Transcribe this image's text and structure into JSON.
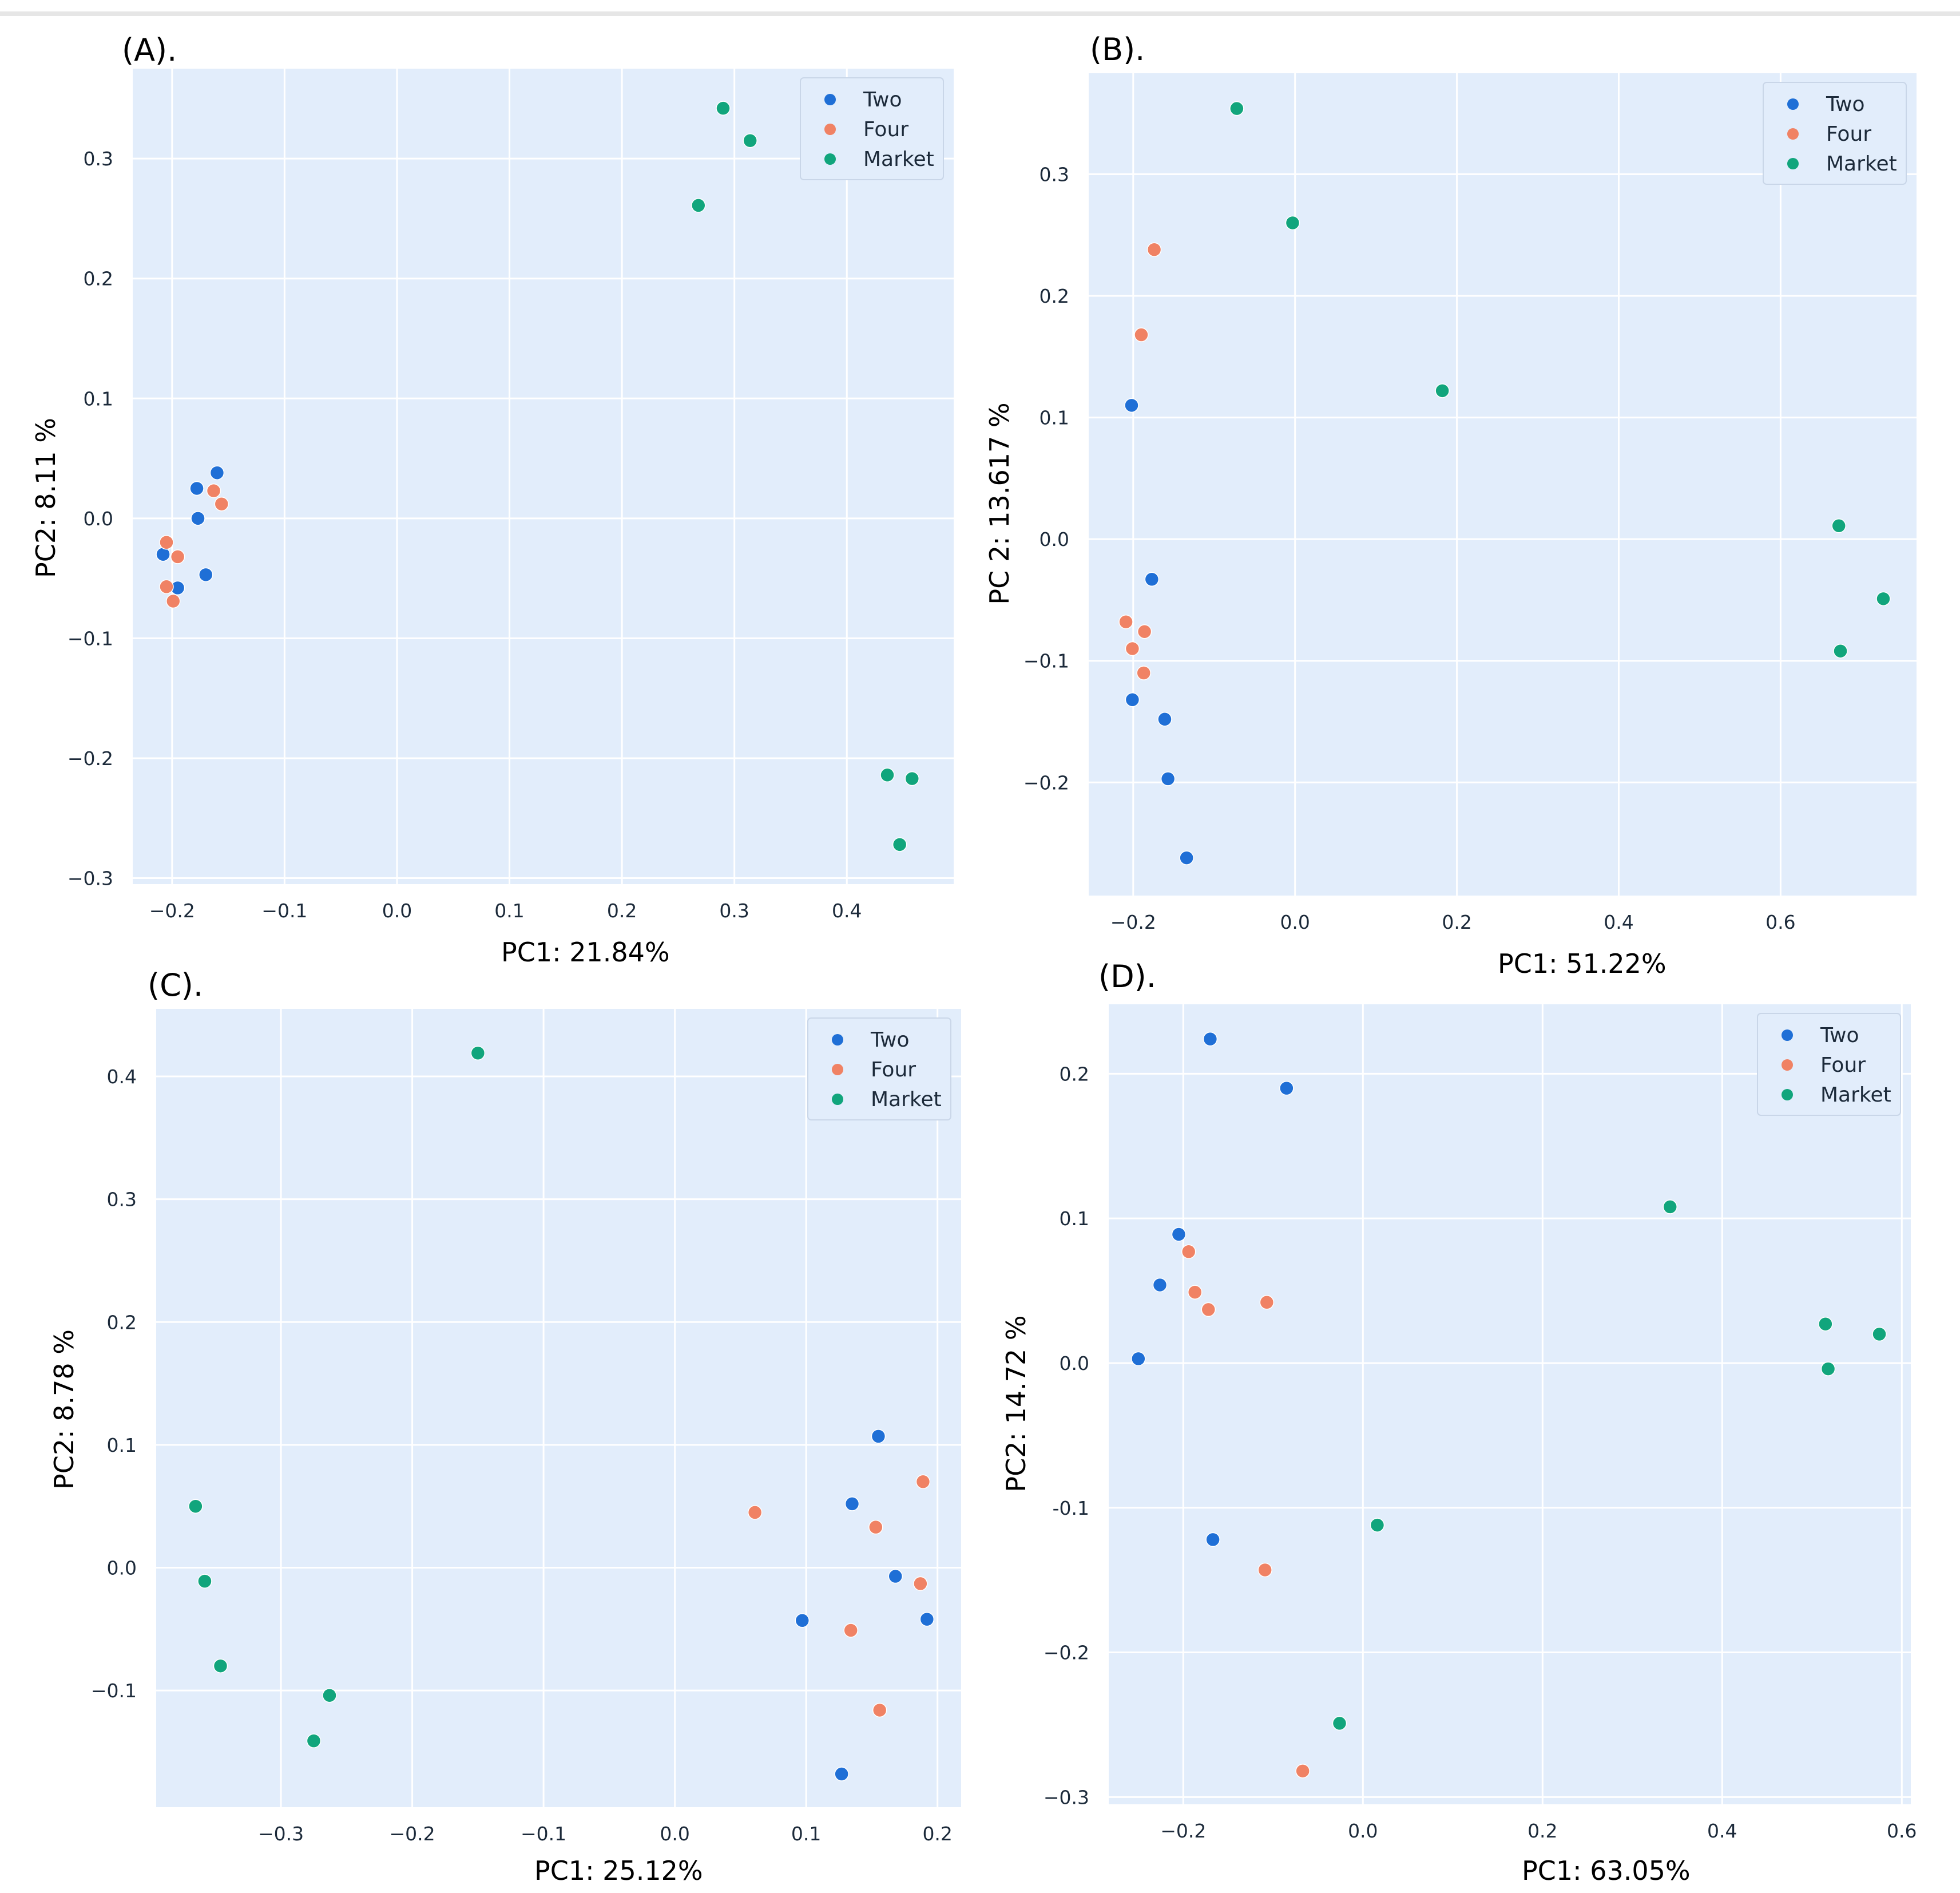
{
  "figure": {
    "background": "#ffffff",
    "plot_background": "#e2edfb",
    "grid_color": "#ffffff"
  },
  "legend_entries": [
    {
      "label": "Two",
      "color": "#1f6fd6"
    },
    {
      "label": "Four",
      "color": "#f08264"
    },
    {
      "label": "Market",
      "color": "#11a57c"
    }
  ],
  "chart_data": [
    {
      "type": "scatter",
      "panel_label": "(A).",
      "xlabel": "PC1: 21.84%",
      "ylabel": "PC2: 8.11 %",
      "xlim": [
        -0.235,
        0.495
      ],
      "ylim": [
        -0.305,
        0.375
      ],
      "xticks": [
        -0.2,
        -0.1,
        0.0,
        0.1,
        0.2,
        0.3,
        0.4
      ],
      "xtick_labels": [
        "−0.2",
        "−0.1",
        "0.0",
        "0.1",
        "0.2",
        "0.3",
        "0.4"
      ],
      "yticks": [
        -0.3,
        -0.2,
        -0.1,
        0.0,
        0.1,
        0.2,
        0.3
      ],
      "ytick_labels": [
        "−0.3",
        "−0.2",
        "−0.1",
        "0.0",
        "0.1",
        "0.2",
        "0.3"
      ],
      "legend_position": "top-right",
      "series": [
        {
          "name": "Two",
          "points": [
            [
              -0.208,
              -0.03
            ],
            [
              -0.178,
              0.025
            ],
            [
              -0.16,
              0.038
            ],
            [
              -0.177,
              0.0
            ],
            [
              -0.17,
              -0.047
            ],
            [
              -0.195,
              -0.058
            ]
          ]
        },
        {
          "name": "Four",
          "points": [
            [
              -0.205,
              -0.02
            ],
            [
              -0.195,
              -0.032
            ],
            [
              -0.163,
              0.023
            ],
            [
              -0.156,
              0.012
            ],
            [
              -0.205,
              -0.057
            ],
            [
              -0.199,
              -0.069
            ]
          ]
        },
        {
          "name": "Market",
          "points": [
            [
              0.29,
              0.342
            ],
            [
              0.314,
              0.315
            ],
            [
              0.268,
              0.261
            ],
            [
              0.436,
              -0.214
            ],
            [
              0.458,
              -0.217
            ],
            [
              0.447,
              -0.272
            ]
          ]
        }
      ]
    },
    {
      "type": "scatter",
      "panel_label": "(B).",
      "xlabel": "PC1: 51.22%",
      "ylabel": "PC 2: 13.617 %",
      "xlim": [
        -0.255,
        0.768
      ],
      "ylim": [
        -0.293,
        0.383
      ],
      "xticks": [
        -0.2,
        0.0,
        0.2,
        0.4,
        0.6
      ],
      "xtick_labels": [
        "−0.2",
        "0.0",
        "0.2",
        "0.4",
        "0.6"
      ],
      "yticks": [
        -0.2,
        -0.1,
        0.0,
        0.1,
        0.2,
        0.3
      ],
      "ytick_labels": [
        "−0.2",
        "−0.1",
        "0.0",
        "0.1",
        "0.2",
        "0.3"
      ],
      "legend_position": "top-right",
      "series": [
        {
          "name": "Two",
          "points": [
            [
              -0.202,
              0.11
            ],
            [
              -0.177,
              -0.033
            ],
            [
              -0.201,
              -0.132
            ],
            [
              -0.161,
              -0.148
            ],
            [
              -0.157,
              -0.197
            ],
            [
              -0.134,
              -0.262
            ]
          ]
        },
        {
          "name": "Four",
          "points": [
            [
              -0.174,
              0.238
            ],
            [
              -0.19,
              0.168
            ],
            [
              -0.209,
              -0.068
            ],
            [
              -0.186,
              -0.076
            ],
            [
              -0.201,
              -0.09
            ],
            [
              -0.187,
              -0.11
            ]
          ]
        },
        {
          "name": "Market",
          "points": [
            [
              -0.072,
              0.354
            ],
            [
              -0.003,
              0.26
            ],
            [
              0.182,
              0.122
            ],
            [
              0.672,
              0.011
            ],
            [
              0.727,
              -0.049
            ],
            [
              0.674,
              -0.092
            ]
          ]
        }
      ]
    },
    {
      "type": "scatter",
      "panel_label": "(C).",
      "xlabel": "PC1: 25.12%",
      "ylabel": "PC2: 8.78 %",
      "xlim": [
        -0.395,
        0.218
      ],
      "ylim": [
        -0.195,
        0.455
      ],
      "xticks": [
        -0.3,
        -0.2,
        -0.1,
        0.0,
        0.1,
        0.2
      ],
      "xtick_labels": [
        "−0.3",
        "−0.2",
        "−0.1",
        "0.0",
        "0.1",
        "0.2"
      ],
      "yticks": [
        -0.1,
        0.0,
        0.1,
        0.2,
        0.3,
        0.4
      ],
      "ytick_labels": [
        "−0.1",
        "0.0",
        "0.1",
        "0.2",
        "0.3",
        "0.4"
      ],
      "legend_position": "top-right",
      "series": [
        {
          "name": "Two",
          "points": [
            [
              0.155,
              0.107
            ],
            [
              0.135,
              0.052
            ],
            [
              0.168,
              -0.007
            ],
            [
              0.097,
              -0.043
            ],
            [
              0.192,
              -0.042
            ],
            [
              0.127,
              -0.168
            ]
          ]
        },
        {
          "name": "Four",
          "points": [
            [
              0.061,
              0.045
            ],
            [
              0.153,
              0.033
            ],
            [
              0.189,
              0.07
            ],
            [
              0.187,
              -0.013
            ],
            [
              0.134,
              -0.051
            ],
            [
              0.156,
              -0.116
            ]
          ]
        },
        {
          "name": "Market",
          "points": [
            [
              -0.15,
              0.419
            ],
            [
              -0.365,
              0.05
            ],
            [
              -0.358,
              -0.011
            ],
            [
              -0.346,
              -0.08
            ],
            [
              -0.263,
              -0.104
            ],
            [
              -0.275,
              -0.141
            ]
          ]
        }
      ]
    },
    {
      "type": "scatter",
      "panel_label": "(D).",
      "xlabel": "PC1: 63.05%",
      "ylabel": "PC2: 14.72 %",
      "xlim": [
        -0.283,
        0.61
      ],
      "ylim": [
        -0.305,
        0.248
      ],
      "xticks": [
        -0.2,
        0.0,
        0.2,
        0.4,
        0.6
      ],
      "xtick_labels": [
        "−0.2",
        "0.0",
        "0.2",
        "0.4",
        "0.6"
      ],
      "yticks": [
        -0.3,
        -0.2,
        -0.1,
        0.0,
        0.1,
        0.2
      ],
      "ytick_labels": [
        "−0.3",
        "−0.2",
        "-0.1",
        "0.0",
        "0.1",
        "0.2"
      ],
      "legend_position": "top-right",
      "series": [
        {
          "name": "Two",
          "points": [
            [
              -0.17,
              0.224
            ],
            [
              -0.085,
              0.19
            ],
            [
              -0.205,
              0.089
            ],
            [
              -0.226,
              0.054
            ],
            [
              -0.25,
              0.003
            ],
            [
              -0.167,
              -0.122
            ]
          ]
        },
        {
          "name": "Four",
          "points": [
            [
              -0.194,
              0.077
            ],
            [
              -0.187,
              0.049
            ],
            [
              -0.172,
              0.037
            ],
            [
              -0.107,
              0.042
            ],
            [
              -0.109,
              -0.143
            ],
            [
              -0.067,
              -0.282
            ]
          ]
        },
        {
          "name": "Market",
          "points": [
            [
              0.342,
              0.108
            ],
            [
              0.515,
              0.027
            ],
            [
              0.575,
              0.02
            ],
            [
              0.518,
              -0.004
            ],
            [
              0.016,
              -0.112
            ],
            [
              -0.026,
              -0.249
            ]
          ]
        }
      ]
    }
  ]
}
